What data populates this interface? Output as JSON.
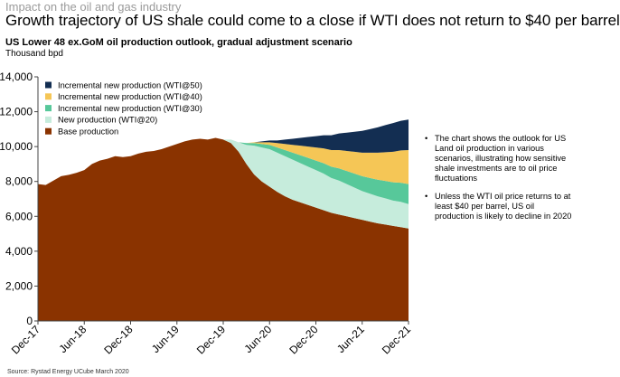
{
  "header": {
    "supertitle": "Impact on the oil and gas industry",
    "title": "Growth trajectory of US shale could come to a close if WTI does not return to $40 per barrel",
    "subtitle": "US Lower 48 ex.GoM oil production outlook, gradual adjustment scenario",
    "unit": "Thousand bpd"
  },
  "notes": [
    "The chart shows the outlook for US Land oil production in various scenarios, illustrating how sensitive shale investments are to oil price fluctuations",
    "Unless the WTI oil price returns to at least $40 per barrel, US oil production is likely to decline in 2020"
  ],
  "source": "Source: Rystad Energy UCube March 2020",
  "chart_data": {
    "type": "area",
    "stacked": true,
    "ylim": [
      0,
      14000
    ],
    "yticks": [
      0,
      2000,
      4000,
      6000,
      8000,
      10000,
      12000,
      14000
    ],
    "ytick_labels": [
      "0",
      "2,000",
      "4,000",
      "6,000",
      "8,000",
      "10,000",
      "12,000",
      "14,000"
    ],
    "xtick_labels": [
      "Dec-17",
      "Jun-18",
      "Dec-18",
      "Jun-19",
      "Dec-19",
      "Jun-20",
      "Dec-20",
      "Jun-21",
      "Dec-21"
    ],
    "x": [
      "Dec-17",
      "Jan-18",
      "Feb-18",
      "Mar-18",
      "Apr-18",
      "May-18",
      "Jun-18",
      "Jul-18",
      "Aug-18",
      "Sep-18",
      "Oct-18",
      "Nov-18",
      "Dec-18",
      "Jan-19",
      "Feb-19",
      "Mar-19",
      "Apr-19",
      "May-19",
      "Jun-19",
      "Jul-19",
      "Aug-19",
      "Sep-19",
      "Oct-19",
      "Nov-19",
      "Dec-19",
      "Jan-20",
      "Feb-20",
      "Mar-20",
      "Apr-20",
      "May-20",
      "Jun-20",
      "Jul-20",
      "Aug-20",
      "Sep-20",
      "Oct-20",
      "Nov-20",
      "Dec-20",
      "Jan-21",
      "Feb-21",
      "Mar-21",
      "Apr-21",
      "May-21",
      "Jun-21",
      "Jul-21",
      "Aug-21",
      "Sep-21",
      "Oct-21",
      "Nov-21",
      "Dec-21"
    ],
    "series": [
      {
        "name": "Base production",
        "color": "#8a3300",
        "values": [
          7850,
          7800,
          8050,
          8300,
          8380,
          8500,
          8650,
          9000,
          9200,
          9300,
          9450,
          9400,
          9450,
          9600,
          9700,
          9750,
          9850,
          10000,
          10150,
          10300,
          10400,
          10450,
          10400,
          10500,
          10400,
          10200,
          9700,
          9000,
          8400,
          8000,
          7700,
          7400,
          7150,
          6950,
          6800,
          6650,
          6500,
          6350,
          6200,
          6100,
          6000,
          5900,
          5800,
          5700,
          5600,
          5530,
          5450,
          5380,
          5300
        ]
      },
      {
        "name": "New production (WTI@20)",
        "color": "#c6ecdc",
        "values": [
          0,
          0,
          0,
          0,
          0,
          0,
          0,
          0,
          0,
          0,
          0,
          0,
          0,
          0,
          0,
          0,
          0,
          0,
          0,
          0,
          0,
          0,
          0,
          0,
          0,
          200,
          550,
          1100,
          1650,
          1950,
          2150,
          2250,
          2300,
          2300,
          2250,
          2200,
          2150,
          2100,
          2000,
          1950,
          1850,
          1750,
          1650,
          1600,
          1550,
          1500,
          1450,
          1450,
          1400
        ]
      },
      {
        "name": "Incremental new production (WTI@30)",
        "color": "#57c89a",
        "values": [
          0,
          0,
          0,
          0,
          0,
          0,
          0,
          0,
          0,
          0,
          0,
          0,
          0,
          0,
          0,
          0,
          0,
          0,
          0,
          0,
          0,
          0,
          0,
          0,
          0,
          0,
          0,
          100,
          150,
          200,
          250,
          300,
          350,
          400,
          450,
          500,
          550,
          600,
          650,
          700,
          750,
          800,
          850,
          900,
          950,
          1000,
          1050,
          1100,
          1150
        ]
      },
      {
        "name": "Incremental new production (WTI@40)",
        "color": "#f5c656",
        "values": [
          0,
          0,
          0,
          0,
          0,
          0,
          0,
          0,
          0,
          0,
          0,
          0,
          0,
          0,
          0,
          0,
          0,
          0,
          0,
          0,
          0,
          0,
          0,
          0,
          0,
          0,
          0,
          0,
          50,
          100,
          150,
          250,
          350,
          450,
          550,
          650,
          750,
          850,
          950,
          1050,
          1150,
          1250,
          1350,
          1450,
          1550,
          1650,
          1750,
          1850,
          1950
        ]
      },
      {
        "name": "Incremental new production (WTI@50)",
        "color": "#132e52",
        "values": [
          0,
          0,
          0,
          0,
          0,
          0,
          0,
          0,
          0,
          0,
          0,
          0,
          0,
          0,
          0,
          0,
          0,
          0,
          0,
          0,
          0,
          0,
          0,
          0,
          0,
          0,
          0,
          0,
          0,
          50,
          100,
          150,
          250,
          350,
          450,
          550,
          650,
          750,
          850,
          950,
          1050,
          1150,
          1250,
          1350,
          1450,
          1550,
          1650,
          1700,
          1750
        ]
      }
    ],
    "legend": {
      "placement": "top-left",
      "order": [
        "Incremental new production (WTI@50)",
        "Incremental new production (WTI@40)",
        "Incremental new production (WTI@30)",
        "New production (WTI@20)",
        "Base production"
      ]
    }
  }
}
